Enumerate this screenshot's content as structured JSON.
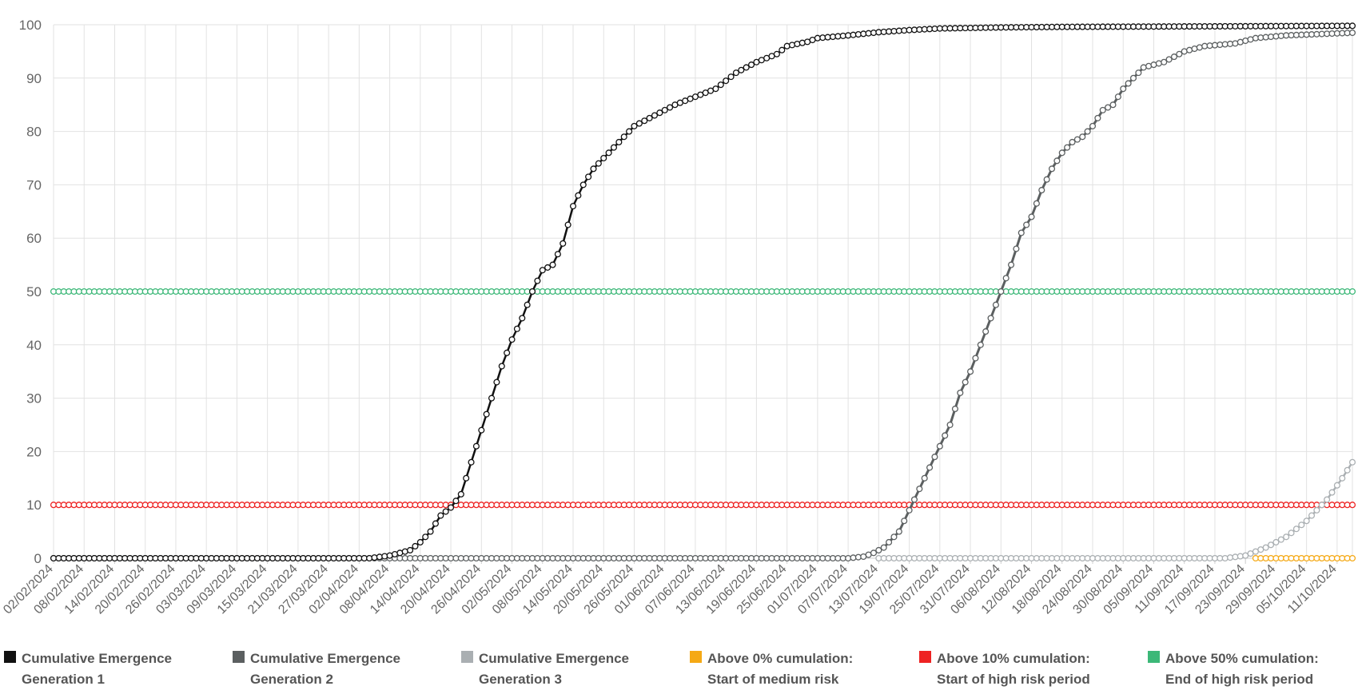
{
  "chart_data": {
    "type": "line",
    "title": "",
    "xlabel": "",
    "ylabel": "",
    "ylim": [
      0,
      100
    ],
    "y_ticks": [
      0,
      10,
      20,
      30,
      40,
      50,
      60,
      70,
      80,
      90,
      100
    ],
    "x_range": [
      "02/02/2024",
      "14/10/2024"
    ],
    "x_tick_labels": [
      "02/02/2024",
      "08/02/2024",
      "14/02/2024",
      "20/02/2024",
      "26/02/2024",
      "03/03/2024",
      "09/03/2024",
      "15/03/2024",
      "21/03/2024",
      "27/03/2024",
      "02/04/2024",
      "08/04/2024",
      "14/04/2024",
      "20/04/2024",
      "26/04/2024",
      "02/05/2024",
      "08/05/2024",
      "14/05/2024",
      "20/05/2024",
      "26/05/2024",
      "01/06/2024",
      "07/06/2024",
      "13/06/2024",
      "19/06/2024",
      "25/06/2024",
      "01/07/2024",
      "07/07/2024",
      "13/07/2024",
      "19/07/2024",
      "25/07/2024",
      "31/07/2024",
      "06/08/2024",
      "12/08/2024",
      "18/08/2024",
      "24/08/2024",
      "30/08/2024",
      "05/09/2024",
      "11/09/2024",
      "17/09/2024",
      "23/09/2024",
      "29/09/2024",
      "05/10/2024",
      "11/10/2024"
    ],
    "grid": true,
    "legend_position": "bottom",
    "series": [
      {
        "name_lines": [
          "Cumulative Emergence",
          "Generation 1"
        ],
        "color": "#111111",
        "marker_fill": "#ffffff",
        "line_width": 2.5,
        "points": [
          [
            "02/02/2024",
            0
          ],
          [
            "04/04/2024",
            0
          ],
          [
            "08/04/2024",
            0.5
          ],
          [
            "12/04/2024",
            1.5
          ],
          [
            "14/04/2024",
            3
          ],
          [
            "16/04/2024",
            5
          ],
          [
            "18/04/2024",
            8
          ],
          [
            "20/04/2024",
            9.5
          ],
          [
            "22/04/2024",
            12
          ],
          [
            "24/04/2024",
            18
          ],
          [
            "26/04/2024",
            24
          ],
          [
            "28/04/2024",
            30
          ],
          [
            "30/04/2024",
            36
          ],
          [
            "02/05/2024",
            41
          ],
          [
            "04/05/2024",
            45
          ],
          [
            "06/05/2024",
            50
          ],
          [
            "08/05/2024",
            54
          ],
          [
            "10/05/2024",
            55
          ],
          [
            "12/05/2024",
            59
          ],
          [
            "14/05/2024",
            66
          ],
          [
            "16/05/2024",
            70
          ],
          [
            "18/05/2024",
            73
          ],
          [
            "20/05/2024",
            75
          ],
          [
            "22/05/2024",
            77
          ],
          [
            "24/05/2024",
            79
          ],
          [
            "26/05/2024",
            81
          ],
          [
            "30/05/2024",
            83
          ],
          [
            "03/06/2024",
            85
          ],
          [
            "07/06/2024",
            86.5
          ],
          [
            "11/06/2024",
            88
          ],
          [
            "15/06/2024",
            91
          ],
          [
            "19/06/2024",
            93
          ],
          [
            "23/06/2024",
            94.5
          ],
          [
            "25/06/2024",
            96
          ],
          [
            "29/06/2024",
            96.8
          ],
          [
            "01/07/2024",
            97.5
          ],
          [
            "07/07/2024",
            98
          ],
          [
            "13/07/2024",
            98.6
          ],
          [
            "19/07/2024",
            99
          ],
          [
            "25/07/2024",
            99.3
          ],
          [
            "06/08/2024",
            99.5
          ],
          [
            "18/08/2024",
            99.6
          ],
          [
            "14/10/2024",
            99.8
          ]
        ]
      },
      {
        "name_lines": [
          "Cumulative Emergence",
          "Generation 2"
        ],
        "color": "#5b5f60",
        "marker_fill": "#ffffff",
        "line_width": 3,
        "points": [
          [
            "02/02/2024",
            0
          ],
          [
            "07/07/2024",
            0
          ],
          [
            "10/07/2024",
            0.3
          ],
          [
            "12/07/2024",
            1
          ],
          [
            "14/07/2024",
            2
          ],
          [
            "17/07/2024",
            5
          ],
          [
            "19/07/2024",
            9
          ],
          [
            "21/07/2024",
            13
          ],
          [
            "23/07/2024",
            17
          ],
          [
            "25/07/2024",
            21
          ],
          [
            "27/07/2024",
            25
          ],
          [
            "29/07/2024",
            31
          ],
          [
            "31/07/2024",
            35
          ],
          [
            "02/08/2024",
            40
          ],
          [
            "04/08/2024",
            45
          ],
          [
            "06/08/2024",
            50
          ],
          [
            "08/08/2024",
            55
          ],
          [
            "10/08/2024",
            61
          ],
          [
            "12/08/2024",
            64
          ],
          [
            "14/08/2024",
            69
          ],
          [
            "16/08/2024",
            73
          ],
          [
            "18/08/2024",
            76
          ],
          [
            "20/08/2024",
            78
          ],
          [
            "22/08/2024",
            79
          ],
          [
            "24/08/2024",
            81
          ],
          [
            "26/08/2024",
            84
          ],
          [
            "28/08/2024",
            85
          ],
          [
            "30/08/2024",
            88
          ],
          [
            "01/09/2024",
            90
          ],
          [
            "03/09/2024",
            92
          ],
          [
            "07/09/2024",
            93
          ],
          [
            "11/09/2024",
            95
          ],
          [
            "15/09/2024",
            96
          ],
          [
            "21/09/2024",
            96.5
          ],
          [
            "25/09/2024",
            97.5
          ],
          [
            "01/10/2024",
            98
          ],
          [
            "14/10/2024",
            98.5
          ]
        ]
      },
      {
        "name_lines": [
          "Cumulative Emergence",
          "Generation 3"
        ],
        "color": "#aaafb2",
        "marker_fill": "#ffffff",
        "line_width": 2.5,
        "points": [
          [
            "13/07/2024",
            0
          ],
          [
            "19/09/2024",
            0
          ],
          [
            "23/09/2024",
            0.5
          ],
          [
            "27/09/2024",
            2
          ],
          [
            "01/10/2024",
            4
          ],
          [
            "05/10/2024",
            7
          ],
          [
            "09/10/2024",
            11
          ],
          [
            "12/10/2024",
            15
          ],
          [
            "14/10/2024",
            18
          ]
        ]
      },
      {
        "name_lines": [
          "Above 0% cumulation:",
          "Start of medium risk"
        ],
        "color": "#f5a915",
        "marker_fill": "#ffffff",
        "line_width": 1.5,
        "points": [
          [
            "25/09/2024",
            0
          ],
          [
            "14/10/2024",
            0
          ]
        ]
      },
      {
        "name_lines": [
          "Above 10% cumulation:",
          "Start of high risk period"
        ],
        "color": "#ee2222",
        "marker_fill": "#ffffff",
        "line_width": 1.5,
        "points": [
          [
            "02/02/2024",
            10
          ],
          [
            "14/10/2024",
            10
          ]
        ]
      },
      {
        "name_lines": [
          "Above 50% cumulation:",
          "End of high risk period"
        ],
        "color": "#3cb878",
        "marker_fill": "#ffffff",
        "line_width": 1.5,
        "points": [
          [
            "02/02/2024",
            50
          ],
          [
            "14/10/2024",
            50
          ]
        ]
      }
    ]
  }
}
